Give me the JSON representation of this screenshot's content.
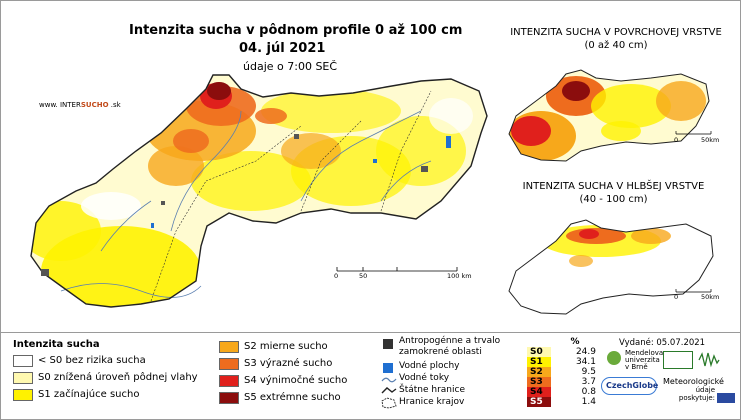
{
  "main": {
    "title": "Intenzita sucha v pôdnom profile 0 až 100 cm",
    "date": "04. júl 2021",
    "time": "údaje o 7:00 SEČ",
    "site_pre": "www.  INTER",
    "site_hl": "SUCHO",
    "site_post": " .sk",
    "scale": [
      "0",
      "50",
      "100 km"
    ]
  },
  "surface": {
    "title": "INTENZITA SUCHA V POVRCHOVEJ VRSTVE",
    "subtitle": "(0 až 40 cm)",
    "scale": [
      "0",
      "50km"
    ]
  },
  "deep": {
    "title": "INTENZITA SUCHA V HLBŠEJ VRSTVE",
    "subtitle": "(40 - 100 cm)",
    "scale": [
      "0",
      "50km"
    ]
  },
  "legend": {
    "heading": "Intenzita sucha",
    "classes": [
      {
        "label": "< S0 bez rizika sucha",
        "color": "#ffffff"
      },
      {
        "label": "S0 znížená úroveň pôdnej vlahy",
        "color": "#fff9b0"
      },
      {
        "label": "S1 začínajúce sucho",
        "color": "#fff200"
      },
      {
        "label": "S2 mierne sucho",
        "color": "#f7a81b"
      },
      {
        "label": "S3 výrazné sucho",
        "color": "#ee6c1e"
      },
      {
        "label": "S4 výnimočné sucho",
        "color": "#e0201c"
      },
      {
        "label": "S5 extrémne sucho",
        "color": "#8b0d0d"
      }
    ],
    "features": [
      {
        "label": "Antropogénne a trvalo zamokrené oblasti",
        "icon": "dark-gray-square-icon"
      },
      {
        "label": "Vodné plochy",
        "icon": "blue-square-icon"
      },
      {
        "label": "Vodné toky",
        "icon": "river-line-icon"
      },
      {
        "label": "Štátne hranice",
        "icon": "state-border-icon"
      },
      {
        "label": "Hranice krajov",
        "icon": "region-border-icon"
      }
    ]
  },
  "percent_table": {
    "header": "%",
    "rows": [
      {
        "code": "S0",
        "value": "24.9",
        "color": "#fff9b0"
      },
      {
        "code": "S1",
        "value": "34.1",
        "color": "#fff200"
      },
      {
        "code": "S2",
        "value": "9.5",
        "color": "#f7a81b"
      },
      {
        "code": "S3",
        "value": "3.7",
        "color": "#ee6c1e"
      },
      {
        "code": "S4",
        "value": "0.8",
        "color": "#e0201c"
      },
      {
        "code": "S5",
        "value": "1.4",
        "color": "#8b0d0d"
      }
    ]
  },
  "footer": {
    "issued": "Vydané: 05.07.2021",
    "mendel": [
      "Mendelova",
      "univerzita",
      "v Brně"
    ],
    "czechglobe": "CzechGlobe",
    "met": [
      "Meteorologické",
      "údaje",
      "poskytuje:"
    ]
  },
  "colors": {
    "s0": "#fff9b0",
    "s1": "#fff200",
    "s2": "#f7a81b",
    "s3": "#ee6c1e",
    "s4": "#e0201c",
    "s5": "#8b0d0d",
    "water": "#1f6fd1",
    "river": "#5a7fb0",
    "border": "#333333",
    "urban": "#555555"
  }
}
